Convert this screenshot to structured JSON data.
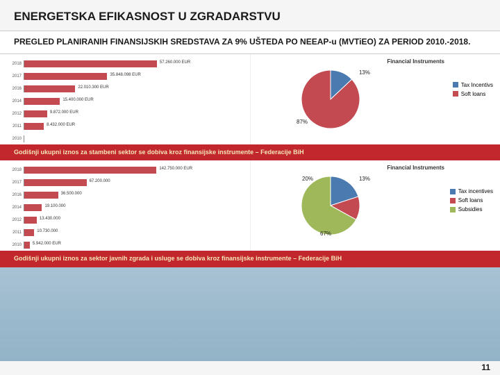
{
  "title": "ENERGETSKA EFIKASNOST U ZGRADARSTVU",
  "subtitle": "PREGLED PLANIRANIH FINANSIJSKIH SREDSTAVA ZA 9% UŠTEDA PO NEEAP-u (MVTiEO) ZA PERIOD 2010.-2018.",
  "page_number": "11",
  "bar1": {
    "years": [
      "2018",
      "2017",
      "2016",
      "2014",
      "2012",
      "2011",
      "2010"
    ],
    "values": [
      57260000,
      35848098,
      22010300,
      15400000,
      9872000,
      8432000,
      0
    ],
    "labels": [
      "57.260.000 EUR",
      "35.848.098 EUR",
      "22.010.300 EUR",
      "15.400.000 EUR",
      "9.872.000 EUR",
      "8.432.000 EUR",
      ""
    ],
    "max": 60000000,
    "bar_color": "#c44a52",
    "band_text": "Godišnji ukupni iznos za stambeni sektor se dobiva kroz finansijske instrumente – Federacije BiH"
  },
  "pie1": {
    "title": "Financial Instruments",
    "slices": [
      {
        "label": "Tax Incentivs",
        "pct": 13,
        "color": "#4a7ab0"
      },
      {
        "label": "Soft loans",
        "pct": 87,
        "color": "#c44a52"
      }
    ],
    "label_13": "13%",
    "label_87": "87%"
  },
  "bar2": {
    "years": [
      "2018",
      "2017",
      "2016",
      "2014",
      "2012",
      "2011",
      "2010"
    ],
    "values": [
      142750000,
      67200000,
      36500000,
      19100000,
      13430000,
      10730000,
      5942000
    ],
    "labels": [
      "142.750.000 EUR",
      "67.200.000",
      "36.500.000",
      "19.100.000",
      "13.430.000",
      "10.730.000",
      "5.942.000 EUR"
    ],
    "max": 150000000,
    "bar_color": "#c44a52",
    "band_text": "Godišnji ukupni iznos za sektor javnih zgrada i usluge se dobiva kroz finansijske instrumente – Federacije BiH"
  },
  "pie2": {
    "title": "Financial Instruments",
    "slices": [
      {
        "label": "Tax incentives",
        "pct": 20,
        "color": "#4a7ab0"
      },
      {
        "label": "Soft loans",
        "pct": 13,
        "color": "#c44a52"
      },
      {
        "label": "Subsidies",
        "pct": 67,
        "color": "#9fb85a"
      }
    ],
    "label_20": "20%",
    "label_13": "13%",
    "label_67": "67%"
  }
}
